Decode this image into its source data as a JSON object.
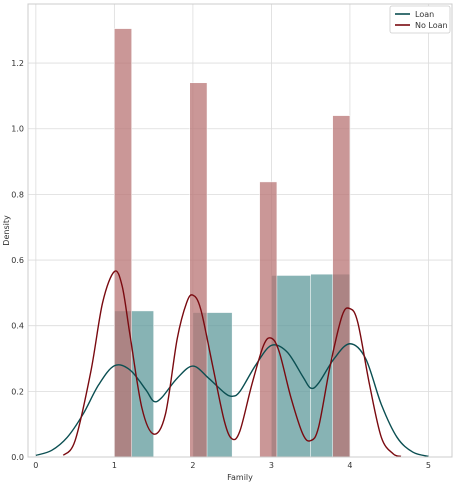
{
  "chart_data": {
    "type": "bar",
    "xlabel": "Family",
    "ylabel": "Density",
    "xlim": [
      -0.1,
      5.3
    ],
    "ylim": [
      0,
      1.38
    ],
    "xticks": [
      0,
      1,
      2,
      3,
      4,
      5
    ],
    "yticks": [
      0.0,
      0.2,
      0.4,
      0.6,
      0.8,
      1.0,
      1.2
    ],
    "grid": true,
    "legend_position": "top-right",
    "series": [
      {
        "name": "Loan",
        "color": "#0b4f52",
        "bar_color": "#5f9a9b",
        "bins": [
          {
            "x0": 1.0,
            "x1": 1.5,
            "value": 0.445
          },
          {
            "x0": 2.0,
            "x1": 2.5,
            "value": 0.44
          },
          {
            "x0": 3.0,
            "x1": 3.5,
            "value": 0.553
          },
          {
            "x0": 3.5,
            "x1": 4.0,
            "value": 0.557
          }
        ],
        "kde": [
          [
            0.0,
            0.005
          ],
          [
            0.2,
            0.02
          ],
          [
            0.4,
            0.06
          ],
          [
            0.6,
            0.13
          ],
          [
            0.8,
            0.22
          ],
          [
            1.0,
            0.278
          ],
          [
            1.2,
            0.265
          ],
          [
            1.4,
            0.205
          ],
          [
            1.5,
            0.17
          ],
          [
            1.6,
            0.18
          ],
          [
            1.8,
            0.24
          ],
          [
            2.0,
            0.277
          ],
          [
            2.2,
            0.24
          ],
          [
            2.4,
            0.196
          ],
          [
            2.5,
            0.185
          ],
          [
            2.6,
            0.2
          ],
          [
            2.8,
            0.28
          ],
          [
            3.0,
            0.34
          ],
          [
            3.2,
            0.32
          ],
          [
            3.4,
            0.245
          ],
          [
            3.5,
            0.21
          ],
          [
            3.6,
            0.225
          ],
          [
            3.8,
            0.3
          ],
          [
            4.0,
            0.345
          ],
          [
            4.2,
            0.3
          ],
          [
            4.4,
            0.16
          ],
          [
            4.6,
            0.06
          ],
          [
            4.8,
            0.015
          ],
          [
            5.0,
            0.002
          ]
        ]
      },
      {
        "name": "No Loan",
        "color": "#7a0a10",
        "bar_color": "#b87474",
        "bins": [
          {
            "x0": 1.0,
            "x1": 1.22,
            "value": 1.305
          },
          {
            "x0": 1.96,
            "x1": 2.18,
            "value": 1.14
          },
          {
            "x0": 2.85,
            "x1": 3.07,
            "value": 0.838
          },
          {
            "x0": 3.78,
            "x1": 4.0,
            "value": 1.04
          }
        ],
        "kde": [
          [
            0.35,
            0.005
          ],
          [
            0.5,
            0.05
          ],
          [
            0.7,
            0.26
          ],
          [
            0.85,
            0.47
          ],
          [
            1.0,
            0.565
          ],
          [
            1.1,
            0.52
          ],
          [
            1.2,
            0.37
          ],
          [
            1.35,
            0.15
          ],
          [
            1.5,
            0.07
          ],
          [
            1.65,
            0.13
          ],
          [
            1.8,
            0.36
          ],
          [
            1.92,
            0.47
          ],
          [
            2.0,
            0.493
          ],
          [
            2.1,
            0.45
          ],
          [
            2.25,
            0.28
          ],
          [
            2.4,
            0.11
          ],
          [
            2.5,
            0.055
          ],
          [
            2.6,
            0.08
          ],
          [
            2.75,
            0.22
          ],
          [
            2.9,
            0.34
          ],
          [
            3.0,
            0.362
          ],
          [
            3.1,
            0.32
          ],
          [
            3.25,
            0.18
          ],
          [
            3.4,
            0.07
          ],
          [
            3.5,
            0.05
          ],
          [
            3.6,
            0.09
          ],
          [
            3.75,
            0.28
          ],
          [
            3.9,
            0.43
          ],
          [
            4.0,
            0.452
          ],
          [
            4.1,
            0.41
          ],
          [
            4.25,
            0.22
          ],
          [
            4.4,
            0.06
          ],
          [
            4.55,
            0.01
          ],
          [
            4.65,
            0.002
          ]
        ]
      }
    ]
  }
}
